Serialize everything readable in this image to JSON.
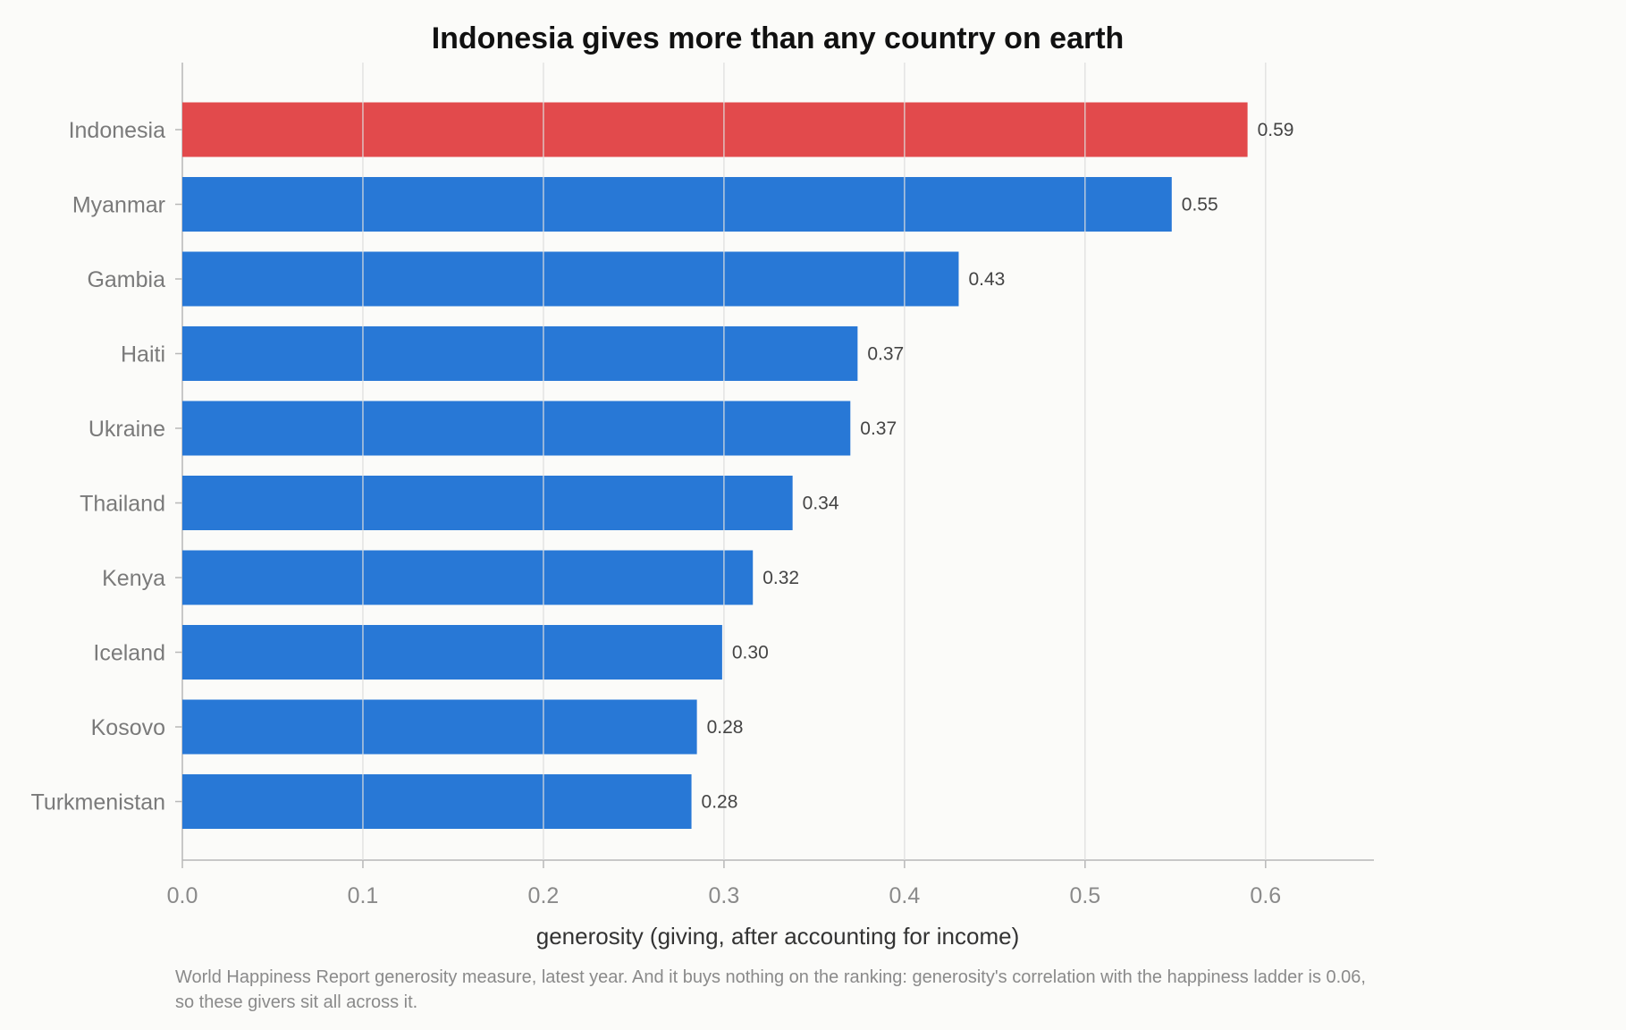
{
  "chart_data": {
    "type": "bar",
    "orientation": "horizontal",
    "title": "Indonesia gives more than any country on earth",
    "xlabel": "generosity (giving, after accounting for income)",
    "ylabel": "",
    "xlim": [
      0,
      0.66
    ],
    "xticks": [
      0.0,
      0.1,
      0.2,
      0.3,
      0.4,
      0.5,
      0.6
    ],
    "xtick_labels": [
      "0.0",
      "0.1",
      "0.2",
      "0.3",
      "0.4",
      "0.5",
      "0.6"
    ],
    "grid": true,
    "grid_axis": "x",
    "categories": [
      "Indonesia",
      "Myanmar",
      "Gambia",
      "Haiti",
      "Ukraine",
      "Thailand",
      "Kenya",
      "Iceland",
      "Kosovo",
      "Turkmenistan"
    ],
    "values": [
      0.59,
      0.548,
      0.43,
      0.374,
      0.37,
      0.338,
      0.316,
      0.299,
      0.285,
      0.282
    ],
    "value_labels": [
      "0.59",
      "0.55",
      "0.43",
      "0.37",
      "0.37",
      "0.34",
      "0.32",
      "0.30",
      "0.28",
      "0.28"
    ],
    "highlight_category": "Indonesia",
    "colors": {
      "highlight": "#e24a4c",
      "bar": "#2878d6",
      "grid": "#dddddd",
      "axis": "#b8b8b8"
    },
    "footnote_lines": [
      "World Happiness Report generosity measure, latest year. And it buys nothing on the ranking: generosity's correlation with the happiness ladder is 0.06,",
      "so these givers sit all across it."
    ]
  }
}
